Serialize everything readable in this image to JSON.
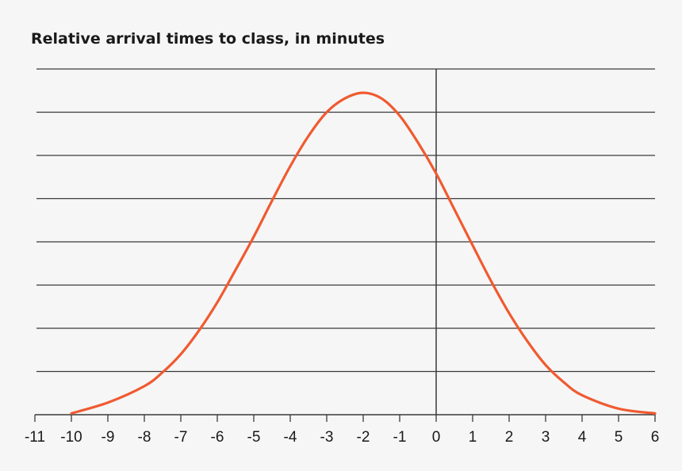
{
  "chart_data": {
    "type": "line",
    "title": "Relative arrival times to class, in minutes",
    "xlabel": "",
    "ylabel": "",
    "xlim": [
      -11,
      6
    ],
    "ylim": [
      0,
      8
    ],
    "x_ticks": [
      -11,
      -10,
      -9,
      -8,
      -7,
      -6,
      -5,
      -4,
      -3,
      -2,
      -1,
      0,
      1,
      2,
      3,
      4,
      5,
      6
    ],
    "x_tick_labels": [
      "-11",
      "-10",
      "-9",
      "-8",
      "-7",
      "-6",
      "-5",
      "-4",
      "-3",
      "-2",
      "-1",
      "0",
      "1",
      "2",
      "3",
      "4",
      "5",
      "6"
    ],
    "y_gridlines": [
      1,
      2,
      3,
      4,
      5,
      6,
      7,
      8
    ],
    "grid": true,
    "legend": "none",
    "series": [
      {
        "color": "#f05a30",
        "x": [
          -10,
          -9,
          -8,
          -7.5,
          -7,
          -6.5,
          -6,
          -5.5,
          -5,
          -4.5,
          -4,
          -3.5,
          -3,
          -2.5,
          -2,
          -1.5,
          -1,
          -0.5,
          0,
          0.5,
          1,
          1.5,
          2,
          2.5,
          3,
          3.5,
          4,
          5,
          6
        ],
        "y": [
          0.03,
          0.28,
          0.66,
          0.98,
          1.4,
          1.95,
          2.6,
          3.35,
          4.12,
          4.95,
          5.75,
          6.45,
          7.0,
          7.32,
          7.45,
          7.32,
          6.92,
          6.3,
          5.58,
          4.75,
          3.92,
          3.1,
          2.35,
          1.7,
          1.15,
          0.75,
          0.45,
          0.14,
          0.03
        ]
      }
    ],
    "colors": {
      "grid": "#3a3a3a",
      "axis": "#3a3a3a",
      "background": "#f6f6f6"
    }
  }
}
